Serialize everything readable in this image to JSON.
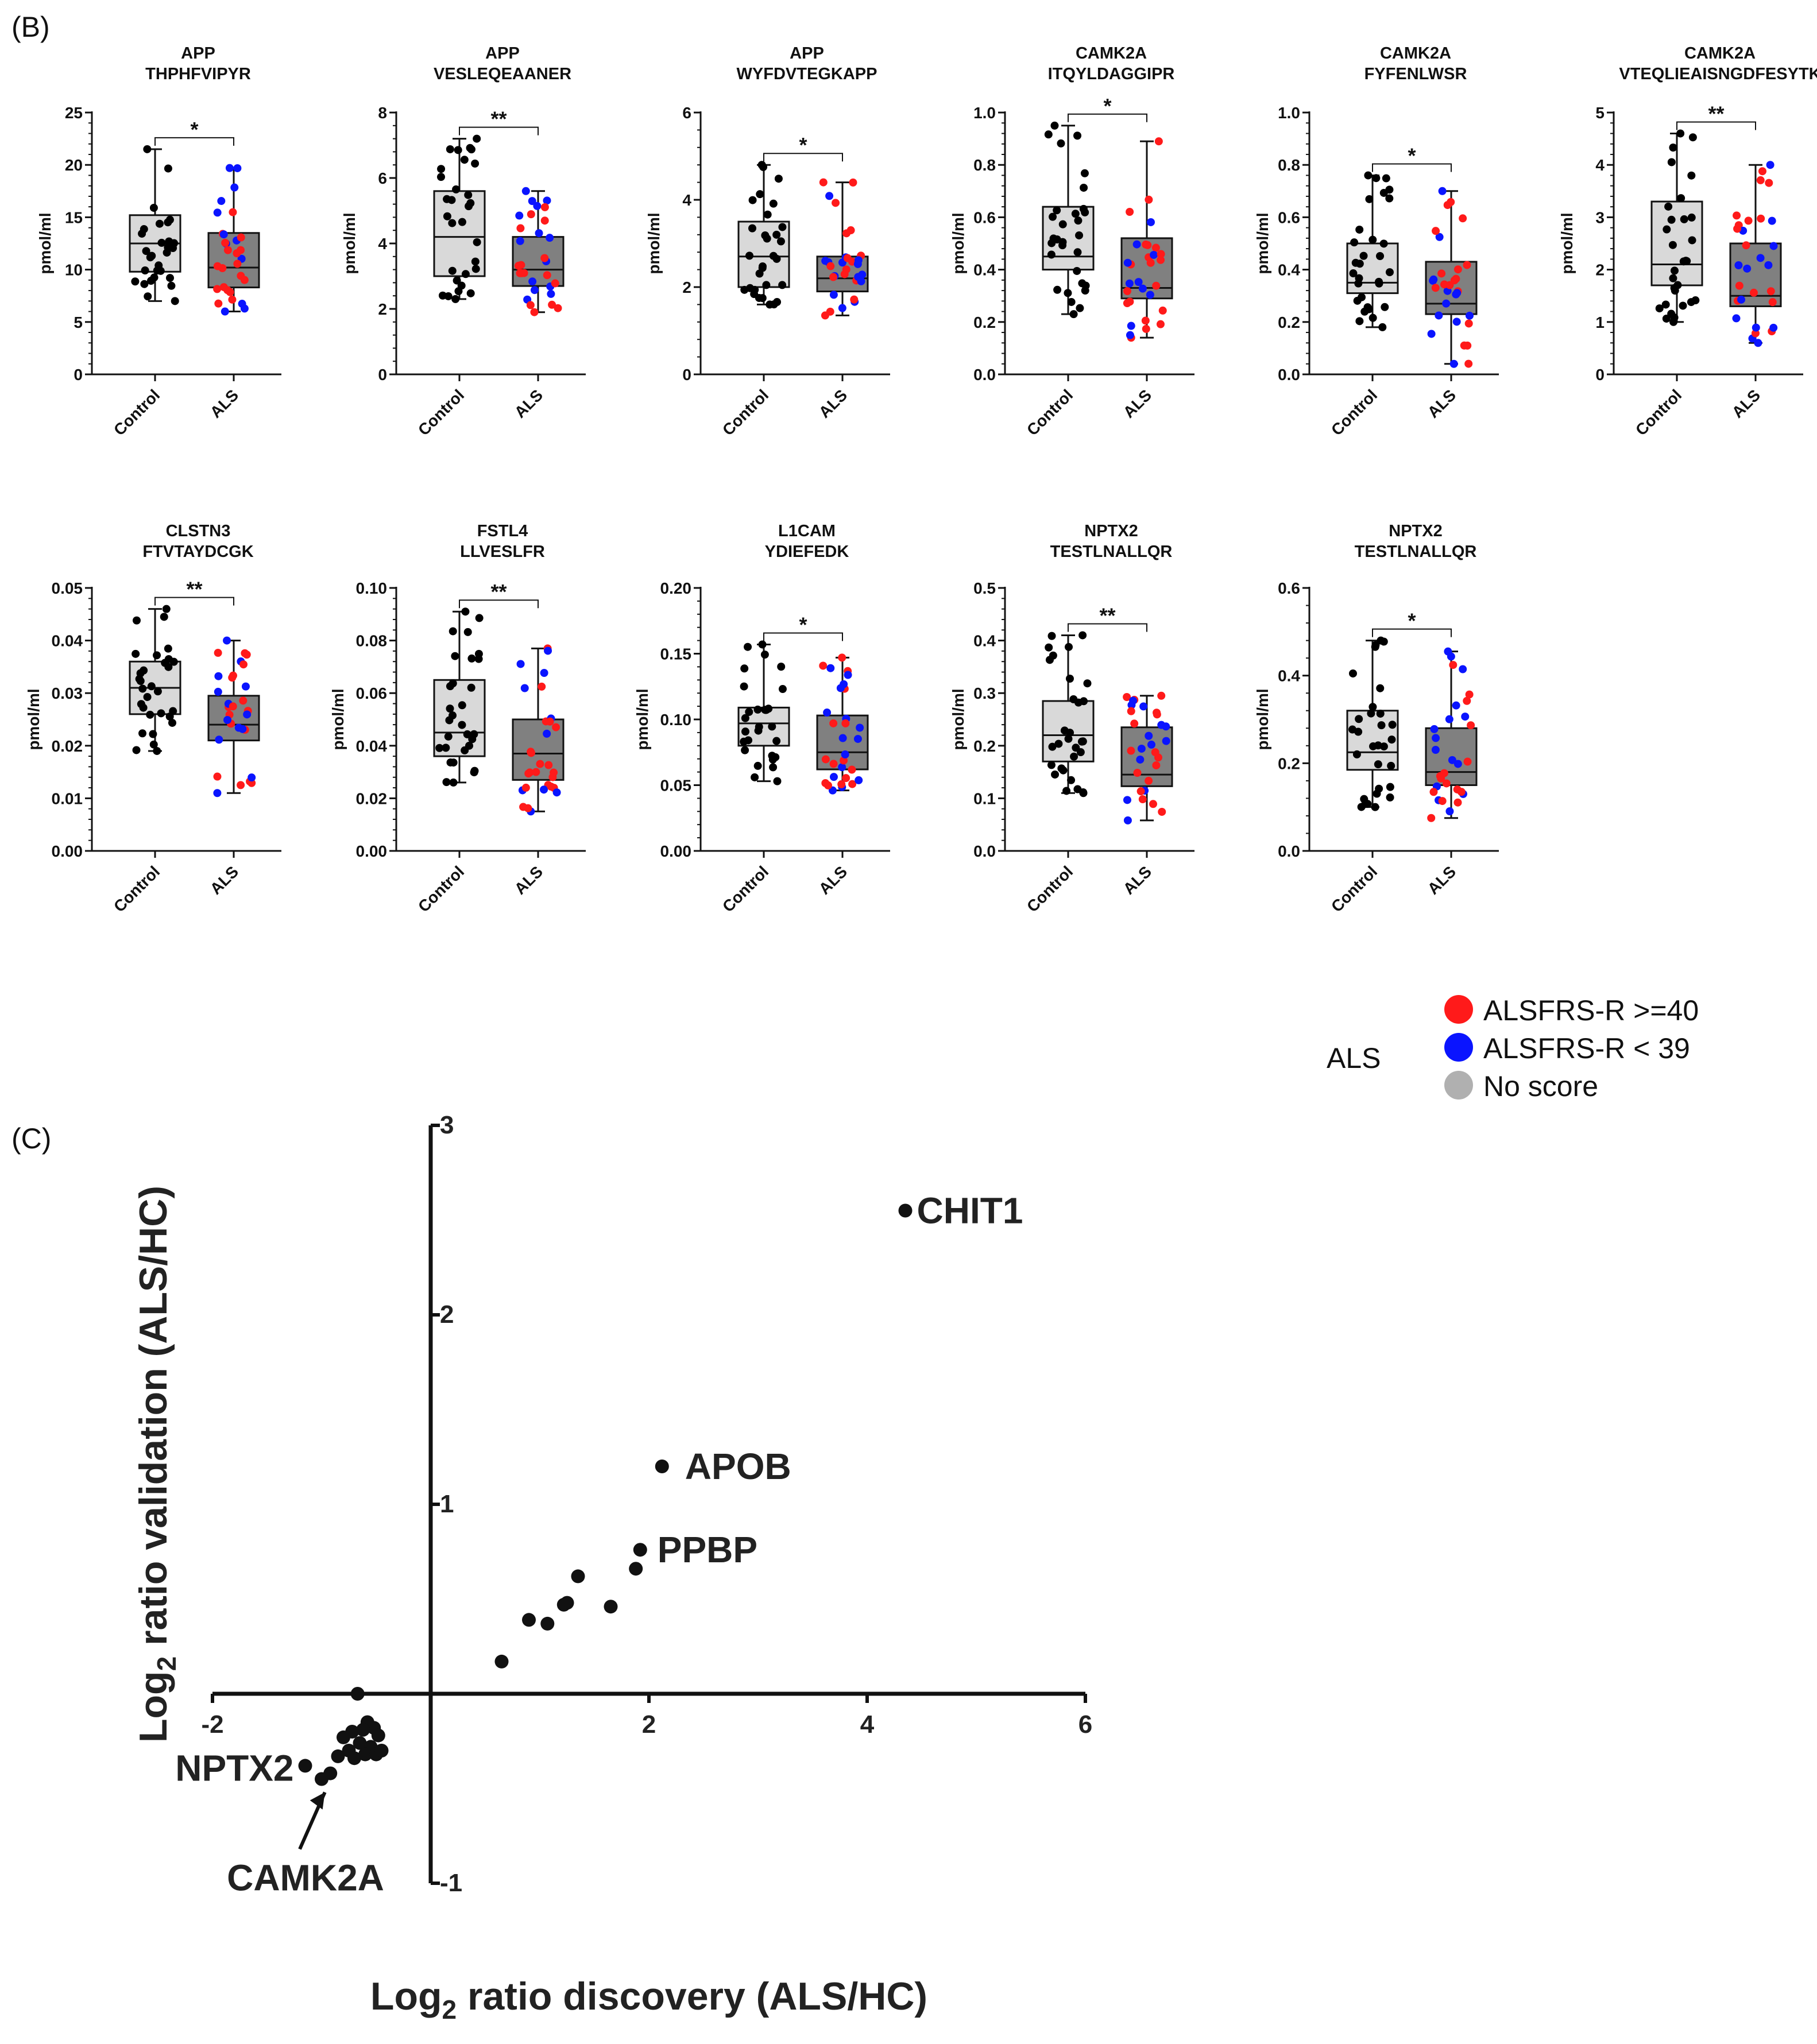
{
  "panel_b_label": "(B)",
  "panel_c_label": "(C)",
  "colors": {
    "control_box": "#d9d9d9",
    "als_box": "#808080",
    "control_point": "#000000",
    "als_high": "#ff1a1a",
    "als_low": "#0a14ff",
    "no_score": "#b0b0b0"
  },
  "legend": {
    "group": "ALS",
    "items": [
      {
        "label": "ALSFRS-R >=40",
        "color": "#ff1a1a"
      },
      {
        "label": "ALSFRS-R <  39",
        "color": "#0a14ff"
      },
      {
        "label": "No score",
        "color": "#b0b0b0"
      }
    ]
  },
  "chart_data": [
    {
      "type": "box",
      "title": [
        "APP",
        "THPHFVIPYR"
      ],
      "ylabel": "pmol/ml",
      "categories": [
        "Control",
        "ALS"
      ],
      "ylim": [
        0,
        25
      ],
      "yticks": [
        0,
        5,
        10,
        15,
        20,
        25
      ],
      "significance": "*",
      "groups": [
        {
          "name": "Control",
          "min": 7.0,
          "q1": 9.8,
          "median": 12.5,
          "q3": 15.2,
          "max": 21.5
        },
        {
          "name": "ALS",
          "min": 6.0,
          "q1": 8.3,
          "median": 10.2,
          "q3": 13.5,
          "max": 19.7
        }
      ]
    },
    {
      "type": "box",
      "title": [
        "APP",
        "VESLEQEAANER"
      ],
      "ylabel": "pmol/ml",
      "categories": [
        "Control",
        "ALS"
      ],
      "ylim": [
        0,
        8
      ],
      "yticks": [
        0,
        2,
        4,
        6,
        8
      ],
      "significance": "**",
      "groups": [
        {
          "name": "Control",
          "min": 2.3,
          "q1": 3.0,
          "median": 4.2,
          "q3": 5.6,
          "max": 7.2
        },
        {
          "name": "ALS",
          "min": 1.9,
          "q1": 2.7,
          "median": 3.2,
          "q3": 4.2,
          "max": 5.6
        }
      ]
    },
    {
      "type": "box",
      "title": [
        "APP",
        "WYFDVTEGKAPP"
      ],
      "ylabel": "pmol/ml",
      "categories": [
        "Control",
        "ALS"
      ],
      "ylim": [
        0,
        6
      ],
      "yticks": [
        0,
        2,
        4,
        6
      ],
      "significance": "*",
      "groups": [
        {
          "name": "Control",
          "min": 1.6,
          "q1": 2.0,
          "median": 2.7,
          "q3": 3.5,
          "max": 4.8
        },
        {
          "name": "ALS",
          "min": 1.35,
          "q1": 1.9,
          "median": 2.2,
          "q3": 2.7,
          "max": 4.4
        }
      ]
    },
    {
      "type": "box",
      "title": [
        "CAMK2A",
        "ITQYLDAGGIPR"
      ],
      "ylabel": "pmol/ml",
      "categories": [
        "Control",
        "ALS"
      ],
      "ylim": [
        0,
        1.0
      ],
      "yticks": [
        0.0,
        0.2,
        0.4,
        0.6,
        0.8,
        1.0
      ],
      "ytick_labels": [
        "0.0",
        "0.2",
        "0.4",
        "0.6",
        "0.8",
        "1.0"
      ],
      "significance": "*",
      "groups": [
        {
          "name": "Control",
          "min": 0.23,
          "q1": 0.4,
          "median": 0.45,
          "q3": 0.64,
          "max": 0.95
        },
        {
          "name": "ALS",
          "min": 0.14,
          "q1": 0.29,
          "median": 0.33,
          "q3": 0.52,
          "max": 0.89
        }
      ]
    },
    {
      "type": "box",
      "title": [
        "CAMK2A",
        "FYFENLWSR"
      ],
      "ylabel": "pmol/ml",
      "categories": [
        "Control",
        "ALS"
      ],
      "ylim": [
        0,
        1.0
      ],
      "yticks": [
        0.0,
        0.2,
        0.4,
        0.6,
        0.8,
        1.0
      ],
      "ytick_labels": [
        "0.0",
        "0.2",
        "0.4",
        "0.6",
        "0.8",
        "1.0"
      ],
      "significance": "*",
      "groups": [
        {
          "name": "Control",
          "min": 0.18,
          "q1": 0.31,
          "median": 0.35,
          "q3": 0.5,
          "max": 0.76
        },
        {
          "name": "ALS",
          "min": 0.04,
          "q1": 0.23,
          "median": 0.27,
          "q3": 0.43,
          "max": 0.7
        }
      ]
    },
    {
      "type": "box",
      "title": [
        "CAMK2A",
        "VTEQLIEAISNGDFESYTK"
      ],
      "ylabel": "pmol/ml",
      "categories": [
        "Control",
        "ALS"
      ],
      "ylim": [
        0,
        5
      ],
      "yticks": [
        0,
        1,
        2,
        3,
        4,
        5
      ],
      "significance": "**",
      "groups": [
        {
          "name": "Control",
          "min": 1.0,
          "q1": 1.7,
          "median": 2.1,
          "q3": 3.3,
          "max": 4.6
        },
        {
          "name": "ALS",
          "min": 0.6,
          "q1": 1.3,
          "median": 1.5,
          "q3": 2.5,
          "max": 4.0
        }
      ]
    },
    {
      "type": "box",
      "title": [
        "CLSTN3",
        "FTVTAYDCGK"
      ],
      "ylabel": "pmol/ml",
      "categories": [
        "Control",
        "ALS"
      ],
      "ylim": [
        0,
        0.05
      ],
      "yticks": [
        0.0,
        0.01,
        0.02,
        0.03,
        0.04,
        0.05
      ],
      "ytick_labels": [
        "0.00",
        "0.01",
        "0.02",
        "0.03",
        "0.04",
        "0.05"
      ],
      "significance": "**",
      "groups": [
        {
          "name": "Control",
          "min": 0.019,
          "q1": 0.026,
          "median": 0.031,
          "q3": 0.036,
          "max": 0.046
        },
        {
          "name": "ALS",
          "min": 0.011,
          "q1": 0.021,
          "median": 0.024,
          "q3": 0.0295,
          "max": 0.04
        }
      ]
    },
    {
      "type": "box",
      "title": [
        "FSTL4",
        "LLVESLFR"
      ],
      "ylabel": "pmol/ml",
      "categories": [
        "Control",
        "ALS"
      ],
      "ylim": [
        0,
        0.1
      ],
      "yticks": [
        0.0,
        0.02,
        0.04,
        0.06,
        0.08,
        0.1
      ],
      "ytick_labels": [
        "0.00",
        "0.02",
        "0.04",
        "0.06",
        "0.08",
        "0.10"
      ],
      "significance": "**",
      "groups": [
        {
          "name": "Control",
          "min": 0.026,
          "q1": 0.036,
          "median": 0.045,
          "q3": 0.065,
          "max": 0.091
        },
        {
          "name": "ALS",
          "min": 0.015,
          "q1": 0.027,
          "median": 0.037,
          "q3": 0.05,
          "max": 0.077
        }
      ]
    },
    {
      "type": "box",
      "title": [
        "L1CAM",
        "YDIEFEDK"
      ],
      "ylabel": "pmol/ml",
      "categories": [
        "Control",
        "ALS"
      ],
      "ylim": [
        0,
        0.2
      ],
      "yticks": [
        0.0,
        0.05,
        0.1,
        0.15,
        0.2
      ],
      "ytick_labels": [
        "0.00",
        "0.05",
        "0.10",
        "0.15",
        "0.20"
      ],
      "significance": "*",
      "groups": [
        {
          "name": "Control",
          "min": 0.053,
          "q1": 0.08,
          "median": 0.097,
          "q3": 0.109,
          "max": 0.157
        },
        {
          "name": "ALS",
          "min": 0.046,
          "q1": 0.062,
          "median": 0.075,
          "q3": 0.103,
          "max": 0.147
        }
      ]
    },
    {
      "type": "box",
      "title": [
        "NPTX2",
        "TESTLNALLQR"
      ],
      "ylabel": "pmol/ml",
      "categories": [
        "Control",
        "ALS"
      ],
      "ylim": [
        0,
        0.5
      ],
      "yticks": [
        0.0,
        0.1,
        0.2,
        0.3,
        0.4,
        0.5
      ],
      "ytick_labels": [
        "0.0",
        "0.1",
        "0.2",
        "0.3",
        "0.4",
        "0.5"
      ],
      "significance": "**",
      "groups": [
        {
          "name": "Control",
          "min": 0.11,
          "q1": 0.17,
          "median": 0.22,
          "q3": 0.285,
          "max": 0.41
        },
        {
          "name": "ALS",
          "min": 0.058,
          "q1": 0.123,
          "median": 0.145,
          "q3": 0.235,
          "max": 0.295
        }
      ]
    },
    {
      "type": "box",
      "title": [
        "NPTX2",
        "TESTLNALLQR"
      ],
      "ylabel": "pmol/ml",
      "categories": [
        "Control",
        "ALS"
      ],
      "ylim": [
        0,
        0.6
      ],
      "yticks": [
        0.0,
        0.2,
        0.4,
        0.6
      ],
      "ytick_labels": [
        "0.0",
        "0.2",
        "0.4",
        "0.6"
      ],
      "significance": "*",
      "groups": [
        {
          "name": "Control",
          "min": 0.1,
          "q1": 0.185,
          "median": 0.225,
          "q3": 0.32,
          "max": 0.48
        },
        {
          "name": "ALS",
          "min": 0.075,
          "q1": 0.15,
          "median": 0.18,
          "q3": 0.28,
          "max": 0.455
        }
      ]
    },
    {
      "type": "scatter",
      "xlabel": "Log2 ratio discovery (ALS/HC)",
      "ylabel": "Log2 ratio validation (ALS/HC)",
      "xlabel_parts": [
        "Log",
        "2",
        " ratio discovery (ALS/HC)"
      ],
      "ylabel_parts": [
        "Log",
        "2",
        " ratio validation (ALS/HC)"
      ],
      "xlim": [
        -2,
        6
      ],
      "ylim": [
        -1,
        3
      ],
      "xticks": [
        -2,
        2,
        4,
        6
      ],
      "yticks": [
        3,
        2,
        1,
        -1
      ],
      "xtick_labels": [
        "-2",
        "2",
        "4",
        "6"
      ],
      "ytick_labels": [
        "3",
        "2",
        "1",
        "-1"
      ],
      "points": [
        {
          "x": 4.35,
          "y": 2.55,
          "label": "CHIT1"
        },
        {
          "x": 2.12,
          "y": 1.2,
          "label": "APOB"
        },
        {
          "x": 1.92,
          "y": 0.76,
          "label": "PPBP"
        },
        {
          "x": 1.88,
          "y": 0.66
        },
        {
          "x": 1.35,
          "y": 0.62
        },
        {
          "x": 1.25,
          "y": 0.48
        },
        {
          "x": 1.22,
          "y": 0.47
        },
        {
          "x": 1.65,
          "y": 0.46
        },
        {
          "x": 0.9,
          "y": 0.39
        },
        {
          "x": 1.07,
          "y": 0.37
        },
        {
          "x": 0.65,
          "y": 0.17
        },
        {
          "x": -0.67,
          "y": 0.0
        },
        {
          "x": -0.58,
          "y": -0.15
        },
        {
          "x": -0.52,
          "y": -0.18
        },
        {
          "x": -0.62,
          "y": -0.19
        },
        {
          "x": -0.72,
          "y": -0.2
        },
        {
          "x": -0.48,
          "y": -0.22
        },
        {
          "x": -0.8,
          "y": -0.23
        },
        {
          "x": -0.65,
          "y": -0.26
        },
        {
          "x": -0.55,
          "y": -0.28
        },
        {
          "x": -0.75,
          "y": -0.3
        },
        {
          "x": -0.6,
          "y": -0.32
        },
        {
          "x": -0.5,
          "y": -0.32
        },
        {
          "x": -0.45,
          "y": -0.3
        },
        {
          "x": -0.85,
          "y": -0.33
        },
        {
          "x": -0.7,
          "y": -0.34
        },
        {
          "x": -0.92,
          "y": -0.42
        },
        {
          "x": -1.15,
          "y": -0.38,
          "label": "NPTX2"
        },
        {
          "x": -1.0,
          "y": -0.45
        }
      ],
      "arrow_label": "CAMK2A"
    }
  ]
}
